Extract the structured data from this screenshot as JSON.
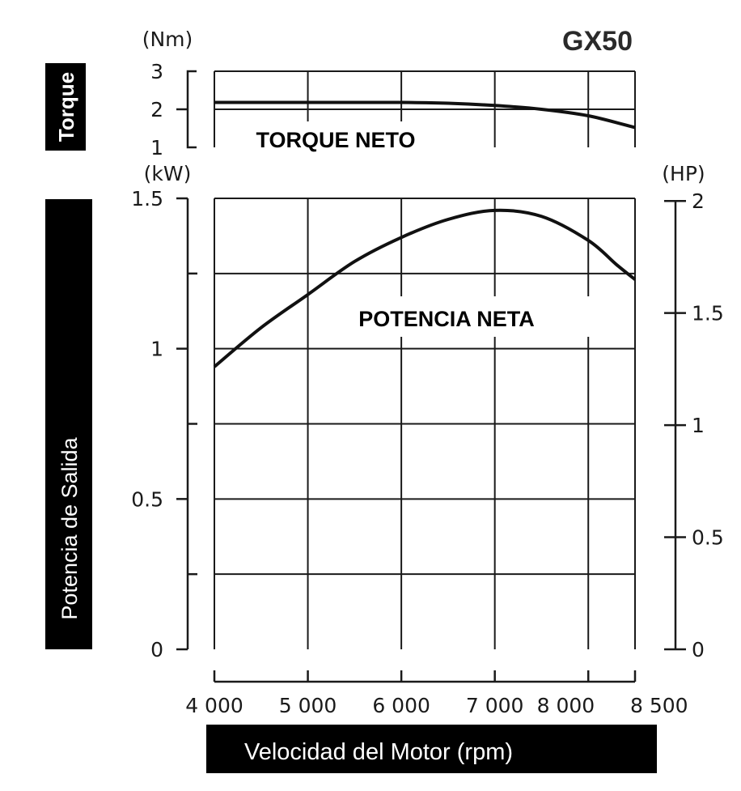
{
  "chart_data": {
    "type": "line",
    "title": "GX50",
    "xlabel": "Velocidad del Motor (rpm)",
    "x_ticks": [
      "4 000",
      "5 000",
      "6 000",
      "7 000",
      "8 000",
      "8 500"
    ],
    "x_tick_values": [
      4000,
      5000,
      6000,
      7000,
      8000,
      8500
    ],
    "xlim": [
      4000,
      8500
    ],
    "torque": {
      "label": "Torque",
      "unit": "(Nm)",
      "ylim": [
        1,
        3
      ],
      "ticks": [
        "1",
        "2",
        "3"
      ],
      "tick_values": [
        1,
        2,
        3
      ],
      "series_name": "TORQUE NETO",
      "x": [
        4000,
        5000,
        6000,
        6500,
        7000,
        7500,
        8000,
        8500
      ],
      "y": [
        2.18,
        2.18,
        2.18,
        2.16,
        2.1,
        2.0,
        1.83,
        1.52
      ]
    },
    "power": {
      "label": "Potencia de Salida",
      "unit_left": "(kW)",
      "unit_right": "(HP)",
      "ylim_left": [
        0,
        1.5
      ],
      "ticks_left": [
        "0",
        "0.5",
        "1",
        "1.5"
      ],
      "tick_values_left": [
        0,
        0.5,
        1,
        1.5
      ],
      "ticks_right": [
        "0",
        "0.5",
        "1",
        "1.5",
        "2"
      ],
      "tick_values_right": [
        0,
        0.5,
        1,
        1.5,
        2
      ],
      "series_name": "POTENCIA NETA",
      "x": [
        4000,
        4500,
        5000,
        5500,
        6000,
        6500,
        7000,
        7500,
        8000,
        8300,
        8500
      ],
      "y": [
        0.94,
        1.07,
        1.18,
        1.29,
        1.37,
        1.43,
        1.46,
        1.44,
        1.36,
        1.28,
        1.23
      ]
    }
  }
}
